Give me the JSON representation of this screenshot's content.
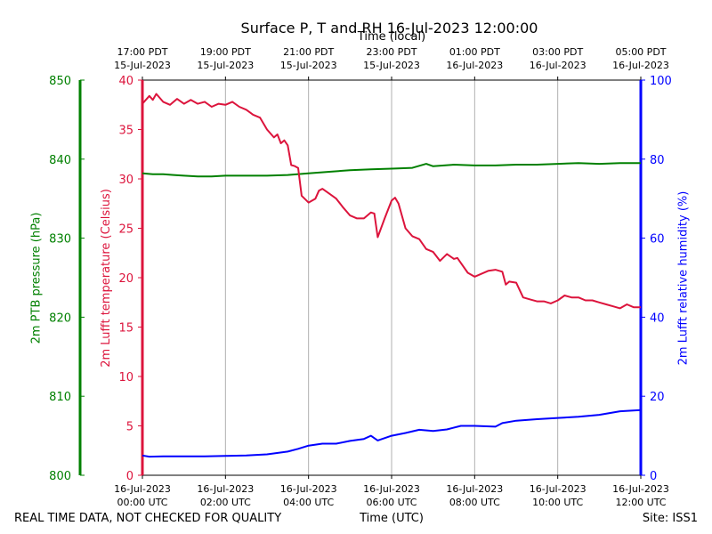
{
  "title": "Surface P, T and RH 16-Jul-2023 12:00:00",
  "footer": {
    "left": "REAL TIME DATA, NOT CHECKED FOR QUALITY",
    "right": "Site: ISS1"
  },
  "colors": {
    "pressure": "#008000",
    "temperature": "#dc143c",
    "humidity": "#0000ff",
    "grid": "#b0b0b0"
  },
  "chart_data": {
    "type": "line",
    "title": "Surface P, T and RH 16-Jul-2023 12:00:00",
    "xlabel": "Time (UTC)",
    "x2label": "Time (local)",
    "xlim": [
      "2023-07-16T00:00",
      "2023-07-16T12:00"
    ],
    "grid": "vertical",
    "bottom_ticks": [
      {
        "x": "2023-07-16T00:00",
        "line1": "16-Jul-2023",
        "line2": "00:00 UTC"
      },
      {
        "x": "2023-07-16T02:00",
        "line1": "16-Jul-2023",
        "line2": "02:00 UTC"
      },
      {
        "x": "2023-07-16T04:00",
        "line1": "16-Jul-2023",
        "line2": "04:00 UTC"
      },
      {
        "x": "2023-07-16T06:00",
        "line1": "16-Jul-2023",
        "line2": "06:00 UTC"
      },
      {
        "x": "2023-07-16T08:00",
        "line1": "16-Jul-2023",
        "line2": "08:00 UTC"
      },
      {
        "x": "2023-07-16T10:00",
        "line1": "16-Jul-2023",
        "line2": "10:00 UTC"
      },
      {
        "x": "2023-07-16T12:00",
        "line1": "16-Jul-2023",
        "line2": "12:00 UTC"
      }
    ],
    "top_ticks": [
      {
        "x": "2023-07-16T00:00",
        "line1": "17:00 PDT",
        "line2": "15-Jul-2023"
      },
      {
        "x": "2023-07-16T02:00",
        "line1": "19:00 PDT",
        "line2": "15-Jul-2023"
      },
      {
        "x": "2023-07-16T04:00",
        "line1": "21:00 PDT",
        "line2": "15-Jul-2023"
      },
      {
        "x": "2023-07-16T06:00",
        "line1": "23:00 PDT",
        "line2": "15-Jul-2023"
      },
      {
        "x": "2023-07-16T08:00",
        "line1": "01:00 PDT",
        "line2": "16-Jul-2023"
      },
      {
        "x": "2023-07-16T10:00",
        "line1": "03:00 PDT",
        "line2": "16-Jul-2023"
      },
      {
        "x": "2023-07-16T12:00",
        "line1": "05:00 PDT",
        "line2": "16-Jul-2023"
      }
    ],
    "axes": {
      "pressure": {
        "label": "2m PTB pressure (hPa)",
        "ylim": [
          800,
          850
        ],
        "ticks": [
          800,
          810,
          820,
          830,
          840,
          850
        ]
      },
      "temperature": {
        "label": "2m Lufft temperature (Celsius)",
        "ylim": [
          0,
          40
        ],
        "ticks": [
          0,
          5,
          10,
          15,
          20,
          25,
          30,
          35,
          40
        ]
      },
      "humidity": {
        "label": "2m Lufft relative humidity (%)",
        "ylim": [
          0,
          100
        ],
        "ticks": [
          0,
          20,
          40,
          60,
          80,
          100
        ]
      }
    },
    "series": [
      {
        "name": "2m PTB pressure (hPa)",
        "axis": "pressure",
        "points": [
          [
            "2023-07-16T00:00",
            838.2
          ],
          [
            "2023-07-16T00:15",
            838.1
          ],
          [
            "2023-07-16T00:30",
            838.1
          ],
          [
            "2023-07-16T00:45",
            838.0
          ],
          [
            "2023-07-16T01:00",
            837.9
          ],
          [
            "2023-07-16T01:20",
            837.8
          ],
          [
            "2023-07-16T01:40",
            837.8
          ],
          [
            "2023-07-16T02:00",
            837.9
          ],
          [
            "2023-07-16T02:30",
            837.9
          ],
          [
            "2023-07-16T03:00",
            837.9
          ],
          [
            "2023-07-16T03:30",
            838.0
          ],
          [
            "2023-07-16T04:00",
            838.2
          ],
          [
            "2023-07-16T04:30",
            838.4
          ],
          [
            "2023-07-16T05:00",
            838.6
          ],
          [
            "2023-07-16T05:30",
            838.7
          ],
          [
            "2023-07-16T06:00",
            838.8
          ],
          [
            "2023-07-16T06:30",
            838.9
          ],
          [
            "2023-07-16T06:50",
            839.4
          ],
          [
            "2023-07-16T07:00",
            839.1
          ],
          [
            "2023-07-16T07:30",
            839.3
          ],
          [
            "2023-07-16T08:00",
            839.2
          ],
          [
            "2023-07-16T08:30",
            839.2
          ],
          [
            "2023-07-16T09:00",
            839.3
          ],
          [
            "2023-07-16T09:30",
            839.3
          ],
          [
            "2023-07-16T10:00",
            839.4
          ],
          [
            "2023-07-16T10:30",
            839.5
          ],
          [
            "2023-07-16T11:00",
            839.4
          ],
          [
            "2023-07-16T11:30",
            839.5
          ],
          [
            "2023-07-16T12:00",
            839.5
          ]
        ]
      },
      {
        "name": "2m Lufft temperature (Celsius)",
        "axis": "temperature",
        "points": [
          [
            "2023-07-16T00:00",
            37.6
          ],
          [
            "2023-07-16T00:10",
            38.4
          ],
          [
            "2023-07-16T00:15",
            38.0
          ],
          [
            "2023-07-16T00:20",
            38.6
          ],
          [
            "2023-07-16T00:30",
            37.8
          ],
          [
            "2023-07-16T00:40",
            37.5
          ],
          [
            "2023-07-16T00:50",
            38.1
          ],
          [
            "2023-07-16T01:00",
            37.6
          ],
          [
            "2023-07-16T01:10",
            38.0
          ],
          [
            "2023-07-16T01:20",
            37.6
          ],
          [
            "2023-07-16T01:30",
            37.8
          ],
          [
            "2023-07-16T01:40",
            37.3
          ],
          [
            "2023-07-16T01:50",
            37.6
          ],
          [
            "2023-07-16T02:00",
            37.5
          ],
          [
            "2023-07-16T02:10",
            37.8
          ],
          [
            "2023-07-16T02:20",
            37.3
          ],
          [
            "2023-07-16T02:30",
            37.0
          ],
          [
            "2023-07-16T02:40",
            36.5
          ],
          [
            "2023-07-16T02:50",
            36.2
          ],
          [
            "2023-07-16T03:00",
            35.0
          ],
          [
            "2023-07-16T03:10",
            34.2
          ],
          [
            "2023-07-16T03:15",
            34.5
          ],
          [
            "2023-07-16T03:20",
            33.6
          ],
          [
            "2023-07-16T03:25",
            33.9
          ],
          [
            "2023-07-16T03:30",
            33.4
          ],
          [
            "2023-07-16T03:35",
            31.4
          ],
          [
            "2023-07-16T03:40",
            31.3
          ],
          [
            "2023-07-16T03:45",
            31.1
          ],
          [
            "2023-07-16T03:50",
            28.3
          ],
          [
            "2023-07-16T04:00",
            27.6
          ],
          [
            "2023-07-16T04:10",
            28.0
          ],
          [
            "2023-07-16T04:15",
            28.8
          ],
          [
            "2023-07-16T04:20",
            29.0
          ],
          [
            "2023-07-16T04:30",
            28.5
          ],
          [
            "2023-07-16T04:40",
            28.0
          ],
          [
            "2023-07-16T04:50",
            27.1
          ],
          [
            "2023-07-16T05:00",
            26.3
          ],
          [
            "2023-07-16T05:10",
            26.0
          ],
          [
            "2023-07-16T05:20",
            26.0
          ],
          [
            "2023-07-16T05:30",
            26.6
          ],
          [
            "2023-07-16T05:35",
            26.5
          ],
          [
            "2023-07-16T05:40",
            24.1
          ],
          [
            "2023-07-16T05:50",
            26.0
          ],
          [
            "2023-07-16T06:00",
            27.8
          ],
          [
            "2023-07-16T06:05",
            28.1
          ],
          [
            "2023-07-16T06:10",
            27.5
          ],
          [
            "2023-07-16T06:20",
            25.0
          ],
          [
            "2023-07-16T06:30",
            24.2
          ],
          [
            "2023-07-16T06:40",
            23.9
          ],
          [
            "2023-07-16T06:50",
            22.9
          ],
          [
            "2023-07-16T07:00",
            22.6
          ],
          [
            "2023-07-16T07:10",
            21.7
          ],
          [
            "2023-07-16T07:20",
            22.4
          ],
          [
            "2023-07-16T07:30",
            21.9
          ],
          [
            "2023-07-16T07:35",
            22.0
          ],
          [
            "2023-07-16T07:40",
            21.5
          ],
          [
            "2023-07-16T07:50",
            20.5
          ],
          [
            "2023-07-16T08:00",
            20.1
          ],
          [
            "2023-07-16T08:10",
            20.4
          ],
          [
            "2023-07-16T08:20",
            20.7
          ],
          [
            "2023-07-16T08:30",
            20.8
          ],
          [
            "2023-07-16T08:40",
            20.6
          ],
          [
            "2023-07-16T08:45",
            19.3
          ],
          [
            "2023-07-16T08:50",
            19.6
          ],
          [
            "2023-07-16T09:00",
            19.5
          ],
          [
            "2023-07-16T09:10",
            18.0
          ],
          [
            "2023-07-16T09:20",
            17.8
          ],
          [
            "2023-07-16T09:30",
            17.6
          ],
          [
            "2023-07-16T09:40",
            17.6
          ],
          [
            "2023-07-16T09:50",
            17.4
          ],
          [
            "2023-07-16T10:00",
            17.7
          ],
          [
            "2023-07-16T10:10",
            18.2
          ],
          [
            "2023-07-16T10:20",
            18.0
          ],
          [
            "2023-07-16T10:30",
            18.0
          ],
          [
            "2023-07-16T10:40",
            17.7
          ],
          [
            "2023-07-16T10:50",
            17.7
          ],
          [
            "2023-07-16T11:00",
            17.5
          ],
          [
            "2023-07-16T11:10",
            17.3
          ],
          [
            "2023-07-16T11:20",
            17.1
          ],
          [
            "2023-07-16T11:30",
            16.9
          ],
          [
            "2023-07-16T11:40",
            17.3
          ],
          [
            "2023-07-16T11:50",
            17.0
          ],
          [
            "2023-07-16T12:00",
            17.0
          ]
        ]
      },
      {
        "name": "2m Lufft relative humidity (%)",
        "axis": "humidity",
        "points": [
          [
            "2023-07-16T00:00",
            5.0
          ],
          [
            "2023-07-16T00:10",
            4.7
          ],
          [
            "2023-07-16T00:30",
            4.8
          ],
          [
            "2023-07-16T01:00",
            4.8
          ],
          [
            "2023-07-16T01:30",
            4.8
          ],
          [
            "2023-07-16T02:00",
            4.9
          ],
          [
            "2023-07-16T02:30",
            5.0
          ],
          [
            "2023-07-16T03:00",
            5.3
          ],
          [
            "2023-07-16T03:30",
            6.0
          ],
          [
            "2023-07-16T03:45",
            6.7
          ],
          [
            "2023-07-16T04:00",
            7.5
          ],
          [
            "2023-07-16T04:20",
            8.0
          ],
          [
            "2023-07-16T04:40",
            8.0
          ],
          [
            "2023-07-16T05:00",
            8.7
          ],
          [
            "2023-07-16T05:20",
            9.2
          ],
          [
            "2023-07-16T05:30",
            10.0
          ],
          [
            "2023-07-16T05:40",
            8.8
          ],
          [
            "2023-07-16T06:00",
            10.0
          ],
          [
            "2023-07-16T06:20",
            10.7
          ],
          [
            "2023-07-16T06:40",
            11.5
          ],
          [
            "2023-07-16T07:00",
            11.2
          ],
          [
            "2023-07-16T07:20",
            11.6
          ],
          [
            "2023-07-16T07:40",
            12.5
          ],
          [
            "2023-07-16T08:00",
            12.5
          ],
          [
            "2023-07-16T08:30",
            12.3
          ],
          [
            "2023-07-16T08:40",
            13.2
          ],
          [
            "2023-07-16T09:00",
            13.8
          ],
          [
            "2023-07-16T09:30",
            14.2
          ],
          [
            "2023-07-16T10:00",
            14.5
          ],
          [
            "2023-07-16T10:30",
            14.8
          ],
          [
            "2023-07-16T11:00",
            15.3
          ],
          [
            "2023-07-16T11:30",
            16.2
          ],
          [
            "2023-07-16T12:00",
            16.5
          ]
        ]
      }
    ]
  }
}
